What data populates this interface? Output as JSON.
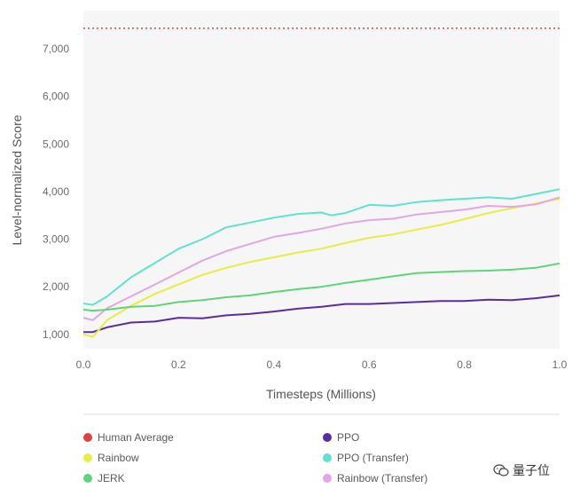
{
  "chart_data": {
    "type": "line",
    "title": "",
    "xlabel": "Timesteps (Millions)",
    "ylabel": "Level-normalized Score",
    "xlim": [
      0,
      1
    ],
    "ylim": [
      700,
      7800
    ],
    "xticks": [
      0.0,
      0.2,
      0.4,
      0.6,
      0.8,
      1.0
    ],
    "xtick_labels": [
      "0.0",
      "0.2",
      "0.4",
      "0.6",
      "0.8",
      "1.0"
    ],
    "yticks": [
      1000,
      2000,
      3000,
      4000,
      5000,
      6000,
      7000
    ],
    "ytick_labels": [
      "1,000",
      "2,000",
      "3,000",
      "4,000",
      "5,000",
      "6,000",
      "7,000"
    ],
    "grid": false,
    "legend_position": "bottom",
    "reference_line": {
      "name": "Human Average",
      "value": 7430,
      "color": "#e04040",
      "style": "dotted"
    },
    "series": [
      {
        "name": "PPO",
        "color": "#5b2ca0",
        "x": [
          0,
          0.02,
          0.05,
          0.1,
          0.15,
          0.2,
          0.25,
          0.3,
          0.35,
          0.4,
          0.45,
          0.5,
          0.55,
          0.6,
          0.65,
          0.7,
          0.75,
          0.8,
          0.85,
          0.9,
          0.95,
          1.0
        ],
        "y": [
          1050,
          1050,
          1150,
          1250,
          1270,
          1350,
          1340,
          1400,
          1430,
          1480,
          1540,
          1580,
          1640,
          1640,
          1660,
          1680,
          1700,
          1700,
          1730,
          1720,
          1760,
          1820
        ]
      },
      {
        "name": "PPO (Transfer)",
        "color": "#5fe3cf",
        "x": [
          0,
          0.02,
          0.05,
          0.1,
          0.15,
          0.2,
          0.25,
          0.3,
          0.35,
          0.4,
          0.45,
          0.5,
          0.52,
          0.55,
          0.6,
          0.65,
          0.7,
          0.75,
          0.8,
          0.85,
          0.9,
          0.95,
          1.0
        ],
        "y": [
          1650,
          1620,
          1800,
          2200,
          2500,
          2800,
          3000,
          3250,
          3350,
          3450,
          3530,
          3560,
          3500,
          3550,
          3720,
          3700,
          3780,
          3820,
          3850,
          3880,
          3850,
          3950,
          4050
        ]
      },
      {
        "name": "Rainbow",
        "color": "#e8ec45",
        "x": [
          0,
          0.02,
          0.05,
          0.1,
          0.15,
          0.2,
          0.25,
          0.3,
          0.35,
          0.4,
          0.45,
          0.5,
          0.55,
          0.6,
          0.65,
          0.7,
          0.75,
          0.8,
          0.85,
          0.9,
          0.95,
          1.0
        ],
        "y": [
          1000,
          950,
          1300,
          1600,
          1850,
          2050,
          2250,
          2400,
          2520,
          2620,
          2720,
          2800,
          2920,
          3030,
          3100,
          3200,
          3300,
          3420,
          3550,
          3650,
          3750,
          3850
        ]
      },
      {
        "name": "Rainbow (Transfer)",
        "color": "#e2a6e2",
        "x": [
          0,
          0.02,
          0.05,
          0.1,
          0.15,
          0.2,
          0.25,
          0.3,
          0.35,
          0.4,
          0.45,
          0.5,
          0.55,
          0.6,
          0.65,
          0.7,
          0.75,
          0.8,
          0.85,
          0.9,
          0.95,
          1.0
        ],
        "y": [
          1350,
          1300,
          1550,
          1800,
          2050,
          2300,
          2550,
          2750,
          2900,
          3050,
          3130,
          3220,
          3330,
          3400,
          3430,
          3520,
          3570,
          3620,
          3700,
          3680,
          3730,
          3880
        ]
      },
      {
        "name": "JERK",
        "color": "#5fd47a",
        "x": [
          0,
          0.02,
          0.05,
          0.1,
          0.15,
          0.2,
          0.25,
          0.3,
          0.35,
          0.4,
          0.45,
          0.5,
          0.55,
          0.6,
          0.65,
          0.7,
          0.75,
          0.8,
          0.85,
          0.9,
          0.95,
          1.0
        ],
        "y": [
          1520,
          1500,
          1520,
          1580,
          1600,
          1680,
          1720,
          1780,
          1820,
          1890,
          1950,
          2000,
          2080,
          2150,
          2220,
          2290,
          2310,
          2330,
          2340,
          2360,
          2400,
          2490
        ]
      }
    ]
  },
  "legend": [
    {
      "label": "Human Average",
      "color": "#e04040"
    },
    {
      "label": "PPO",
      "color": "#5b2ca0"
    },
    {
      "label": "Rainbow",
      "color": "#e8ec45"
    },
    {
      "label": "PPO (Transfer)",
      "color": "#5fe3cf"
    },
    {
      "label": "JERK",
      "color": "#5fd47a"
    },
    {
      "label": "Rainbow (Transfer)",
      "color": "#e2a6e2"
    }
  ],
  "watermark": {
    "text": "量子位",
    "icon": "wechat-icon"
  }
}
